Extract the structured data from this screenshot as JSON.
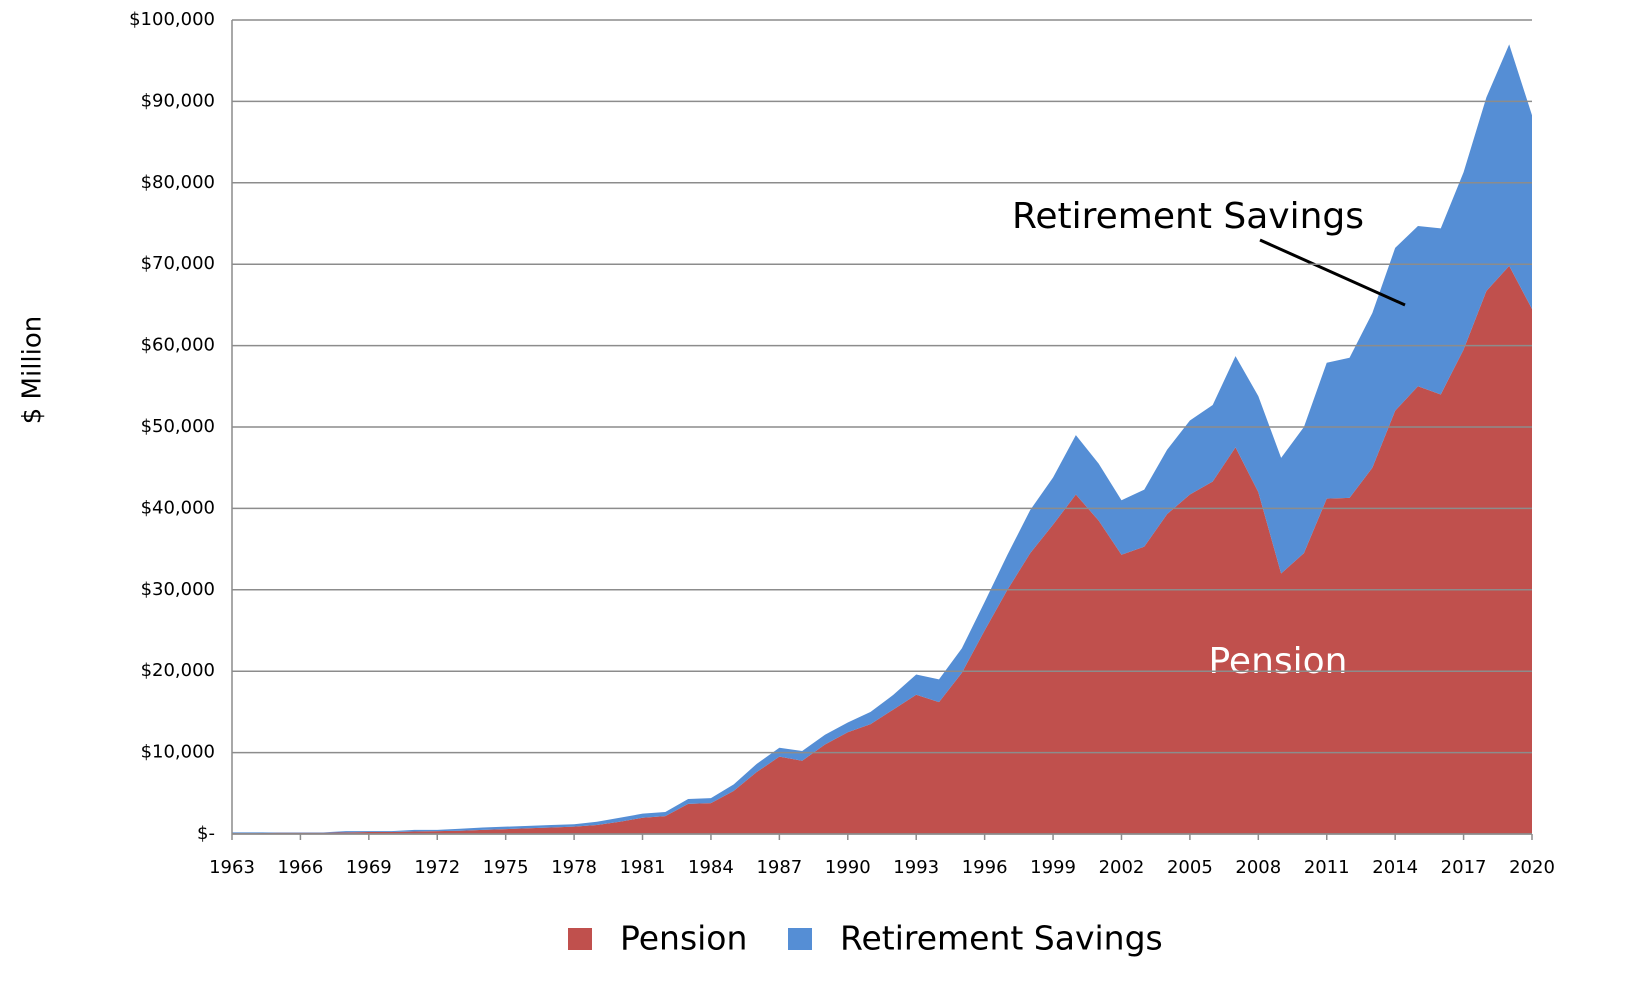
{
  "chart_data": {
    "type": "stacked_area",
    "ylabel": "$ Million",
    "annotations": [
      "Retirement Savings",
      "Pension"
    ],
    "x": [
      1963,
      1964,
      1965,
      1966,
      1967,
      1968,
      1969,
      1970,
      1971,
      1972,
      1973,
      1974,
      1975,
      1976,
      1977,
      1978,
      1979,
      1980,
      1981,
      1982,
      1983,
      1984,
      1985,
      1986,
      1987,
      1988,
      1989,
      1990,
      1991,
      1992,
      1993,
      1994,
      1995,
      1996,
      1997,
      1998,
      1999,
      2000,
      2001,
      2002,
      2003,
      2004,
      2005,
      2006,
      2007,
      2008,
      2009,
      2010,
      2011,
      2012,
      2013,
      2014,
      2015,
      2016,
      2017,
      2018,
      2019,
      2020
    ],
    "xlim": [
      1963,
      2020
    ],
    "xticks": [
      1963,
      1966,
      1969,
      1972,
      1975,
      1978,
      1981,
      1984,
      1987,
      1990,
      1993,
      1996,
      1999,
      2002,
      2005,
      2008,
      2011,
      2014,
      2017,
      2020
    ],
    "ylim": [
      0,
      100000
    ],
    "yticks": [
      {
        "value": 0,
        "label": "$-"
      },
      {
        "value": 10000,
        "label": "$10,000"
      },
      {
        "value": 20000,
        "label": "$20,000"
      },
      {
        "value": 30000,
        "label": "$30,000"
      },
      {
        "value": 40000,
        "label": "$40,000"
      },
      {
        "value": 50000,
        "label": "$50,000"
      },
      {
        "value": 60000,
        "label": "$60,000"
      },
      {
        "value": 70000,
        "label": "$70,000"
      },
      {
        "value": 80000,
        "label": "$80,000"
      },
      {
        "value": 90000,
        "label": "$90,000"
      },
      {
        "value": 100000,
        "label": "$100,000"
      }
    ],
    "grid": true,
    "legend": "bottom",
    "series": [
      {
        "name": "Pension",
        "color": "#c0504d",
        "values": [
          100,
          100,
          150,
          150,
          150,
          200,
          250,
          250,
          300,
          350,
          400,
          500,
          600,
          700,
          800,
          900,
          1100,
          1500,
          2000,
          2200,
          3700,
          3800,
          5300,
          7600,
          9500,
          9000,
          11000,
          12500,
          13500,
          15300,
          17100,
          16200,
          19800,
          25000,
          30000,
          34500,
          38000,
          41700,
          38500,
          34300,
          35300,
          39300,
          41700,
          43300,
          47500,
          42000,
          32000,
          34500,
          41200,
          41300,
          45000,
          52000,
          55000,
          54000,
          59500,
          66700,
          69800,
          64500
        ]
      },
      {
        "name": "Retirement Savings",
        "color": "#558ed5",
        "values": [
          100,
          100,
          50,
          50,
          50,
          150,
          100,
          100,
          200,
          150,
          250,
          300,
          300,
          300,
          300,
          300,
          400,
          500,
          500,
          500,
          600,
          600,
          800,
          1000,
          1100,
          1200,
          1200,
          1200,
          1500,
          1800,
          2500,
          2800,
          3000,
          3500,
          4300,
          5300,
          5800,
          7300,
          7000,
          6700,
          7000,
          7900,
          9100,
          9400,
          11200,
          11800,
          14200,
          15500,
          16700,
          17200,
          19000,
          20000,
          19700,
          20400,
          21800,
          23800,
          27200,
          23800
        ]
      }
    ]
  }
}
